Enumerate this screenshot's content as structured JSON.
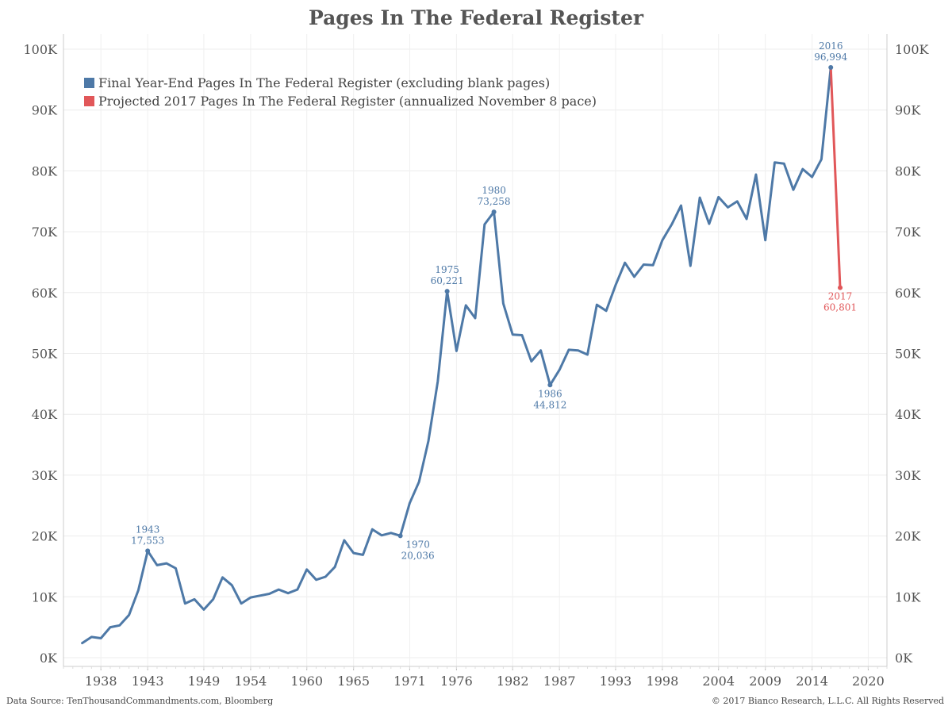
{
  "chart_data": {
    "type": "line",
    "title": "Pages In The Federal Register",
    "y_ticks": [
      "0K",
      "10K",
      "20K",
      "30K",
      "40K",
      "50K",
      "60K",
      "70K",
      "80K",
      "90K",
      "100K"
    ],
    "x_ticks": [
      "1938",
      "1943",
      "1949",
      "1954",
      "1960",
      "1965",
      "1971",
      "1976",
      "1982",
      "1987",
      "1993",
      "1998",
      "2004",
      "2009",
      "2014",
      "2020"
    ],
    "ylim": [
      0,
      100000
    ],
    "xlim": [
      1934,
      2022
    ],
    "grid": true,
    "legend_position": "top-left",
    "series": [
      {
        "name": "Final Year-End Pages In The Federal Register (excluding blank pages)",
        "color": "#4e79a7",
        "x": [
          1936,
          1937,
          1938,
          1939,
          1940,
          1941,
          1942,
          1943,
          1944,
          1945,
          1946,
          1947,
          1948,
          1949,
          1950,
          1951,
          1952,
          1953,
          1954,
          1955,
          1956,
          1957,
          1958,
          1959,
          1960,
          1961,
          1962,
          1963,
          1964,
          1965,
          1966,
          1967,
          1968,
          1969,
          1970,
          1971,
          1972,
          1973,
          1974,
          1975,
          1976,
          1977,
          1978,
          1979,
          1980,
          1981,
          1982,
          1983,
          1984,
          1985,
          1986,
          1987,
          1988,
          1989,
          1990,
          1991,
          1992,
          1993,
          1994,
          1995,
          1996,
          1997,
          1998,
          1999,
          2000,
          2001,
          2002,
          2003,
          2004,
          2005,
          2006,
          2007,
          2008,
          2009,
          2010,
          2011,
          2012,
          2013,
          2014,
          2015,
          2016
        ],
        "values": [
          2400,
          3400,
          3200,
          5000,
          5300,
          7000,
          11100,
          17553,
          15200,
          15500,
          14700,
          8900,
          9600,
          7900,
          9600,
          13200,
          11900,
          8900,
          9900,
          10200,
          10500,
          11200,
          10600,
          11200,
          14500,
          12800,
          13300,
          14900,
          19300,
          17200,
          16900,
          21100,
          20100,
          20500,
          20036,
          25400,
          28900,
          35600,
          45400,
          60221,
          50400,
          57900,
          55800,
          71200,
          73258,
          58200,
          53100,
          53000,
          48700,
          50500,
          44812,
          47300,
          50600,
          50500,
          49800,
          58000,
          57000,
          61200,
          64900,
          62600,
          64600,
          64500,
          68600,
          71200,
          74300,
          64400,
          75600,
          71300,
          75700,
          74000,
          75000,
          72100,
          79400,
          68600,
          81400,
          81200,
          76900,
          80300,
          79000,
          81900,
          96994
        ]
      },
      {
        "name": "Projected 2017 Pages In The Federal Register (annualized November 8 pace)",
        "color": "#e15759",
        "x": [
          2016,
          2017
        ],
        "values": [
          96994,
          60801
        ]
      }
    ],
    "annotations": [
      {
        "year_label": "1943",
        "value_label": "17,553",
        "x": 1943,
        "y": 17553,
        "color": "#4e79a7",
        "pos": "above"
      },
      {
        "year_label": "1970",
        "value_label": "20,036",
        "x": 1970,
        "y": 20036,
        "color": "#4e79a7",
        "pos": "below"
      },
      {
        "year_label": "1975",
        "value_label": "60,221",
        "x": 1975,
        "y": 60221,
        "color": "#4e79a7",
        "pos": "above"
      },
      {
        "year_label": "1980",
        "value_label": "73,258",
        "x": 1980,
        "y": 73258,
        "color": "#4e79a7",
        "pos": "above"
      },
      {
        "year_label": "1986",
        "value_label": "44,812",
        "x": 1986,
        "y": 44812,
        "color": "#4e79a7",
        "pos": "below"
      },
      {
        "year_label": "2016",
        "value_label": "96,994",
        "x": 2016,
        "y": 96994,
        "color": "#4e79a7",
        "pos": "above"
      },
      {
        "year_label": "2017",
        "value_label": "60,801",
        "x": 2017,
        "y": 60801,
        "color": "#e15759",
        "pos": "below"
      }
    ]
  },
  "footer": {
    "source": "Data Source: TenThousandCommandments.com, Bloomberg",
    "copyright": "© 2017 Bianco Research, L.L.C. All Rights Reserved"
  }
}
